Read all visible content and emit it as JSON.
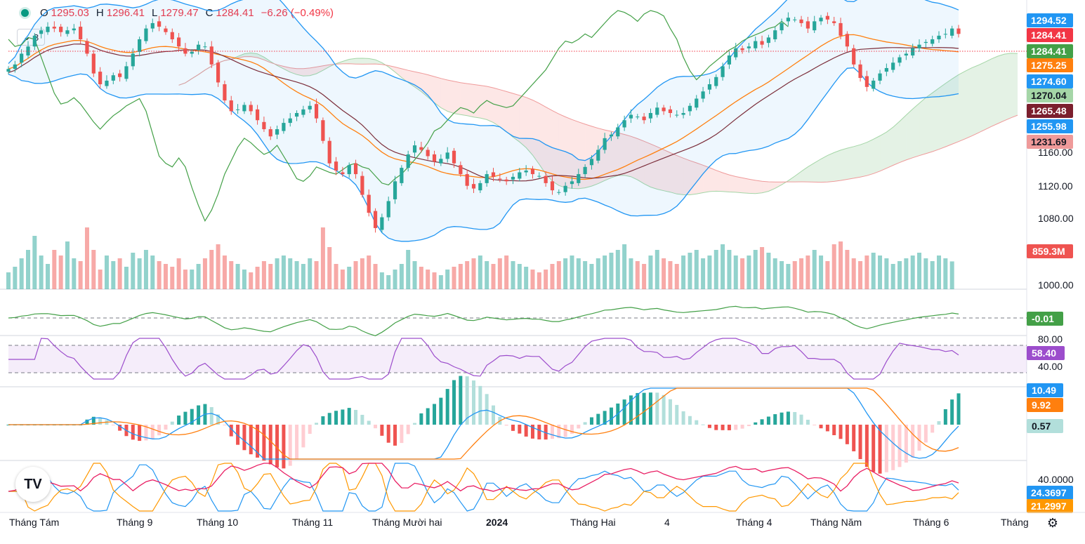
{
  "header": {
    "open_label": "O",
    "open": "1295.03",
    "high_label": "H",
    "high": "1296.41",
    "low_label": "L",
    "low": "1279.47",
    "close_label": "C",
    "close": "1284.41",
    "change": "−6.26 (−0.49%)"
  },
  "collapse_button": {
    "label": "8"
  },
  "logo_text": "TV",
  "colors": {
    "up": "#26a69a",
    "down": "#ef5350",
    "bb": "#2196f3",
    "ma": "#ff7f0e",
    "kijun": "#7b2d3a",
    "chikou": "#43a047",
    "rsi": "#9c4dcc",
    "dmi_plus": "#2196f3",
    "dmi_minus": "#ff9800",
    "adx": "#e91e63"
  },
  "chart_data": [
    {
      "type": "candlestick",
      "panel": "price",
      "y_ticks": [
        "1160.00",
        "1120.00",
        "1080.00",
        "1000.00"
      ],
      "ylim": [
        1000,
        1310
      ],
      "x_ticks": [
        "Tháng Tám",
        "Tháng 9",
        "Tháng 10",
        "Tháng 11",
        "Tháng Mười hai",
        "2024",
        "Tháng Hai",
        "4",
        "Tháng 4",
        "Tháng Năm",
        "Tháng 6",
        "Tháng"
      ],
      "price_tags": [
        {
          "value": "1294.52",
          "color": "#2196f3"
        },
        {
          "value": "1284.41",
          "color": "#f23645"
        },
        {
          "value": "1284.41",
          "color": "#43a047"
        },
        {
          "value": "1275.25",
          "color": "#ff7f0e"
        },
        {
          "value": "1274.60",
          "color": "#2196f3"
        },
        {
          "value": "1270.04",
          "color": "#a5d6a7"
        },
        {
          "value": "1265.48",
          "color": "#7b1f2d"
        },
        {
          "value": "1255.98",
          "color": "#2196f3"
        },
        {
          "value": "1231.69",
          "color": "#ef9a9a"
        }
      ],
      "volume_tag": "859.3M",
      "close_series": [
        1245,
        1250,
        1262,
        1270,
        1282,
        1288,
        1292,
        1290,
        1286,
        1288,
        1290,
        1278,
        1262,
        1240,
        1228,
        1232,
        1238,
        1236,
        1248,
        1262,
        1278,
        1290,
        1296,
        1292,
        1286,
        1278,
        1270,
        1262,
        1264,
        1272,
        1270,
        1250,
        1230,
        1210,
        1198,
        1200,
        1205,
        1198,
        1188,
        1178,
        1170,
        1178,
        1185,
        1190,
        1196,
        1200,
        1204,
        1190,
        1165,
        1140,
        1132,
        1128,
        1138,
        1128,
        1105,
        1085,
        1068,
        1080,
        1098,
        1120,
        1135,
        1150,
        1160,
        1155,
        1148,
        1142,
        1145,
        1152,
        1140,
        1128,
        1115,
        1112,
        1118,
        1128,
        1125,
        1122,
        1120,
        1125,
        1130,
        1132,
        1128,
        1126,
        1118,
        1110,
        1108,
        1115,
        1120,
        1128,
        1136,
        1145,
        1155,
        1168,
        1172,
        1180,
        1188,
        1194,
        1192,
        1188,
        1196,
        1202,
        1198,
        1196,
        1194,
        1196,
        1204,
        1212,
        1220,
        1228,
        1236,
        1248,
        1260,
        1268,
        1266,
        1270,
        1276,
        1272,
        1280,
        1288,
        1296,
        1302,
        1300,
        1296,
        1290,
        1298,
        1302,
        1300,
        1296,
        1282,
        1270,
        1250,
        1235,
        1225,
        1232,
        1240,
        1246,
        1252,
        1258,
        1262,
        1268,
        1272,
        1275,
        1278,
        1282,
        1284,
        1290,
        1284
      ],
      "volume_series": [
        820,
        840,
        870,
        900,
        950,
        880,
        850,
        900,
        880,
        930,
        870,
        860,
        980,
        900,
        830,
        880,
        860,
        870,
        840,
        890,
        870,
        900,
        880,
        860,
        850,
        840,
        870,
        830,
        830,
        850,
        870,
        900,
        920,
        880,
        860,
        850,
        830,
        820,
        840,
        860,
        850,
        870,
        880,
        870,
        860,
        850,
        870,
        860,
        980,
        910,
        850,
        830,
        840,
        860,
        870,
        880,
        850,
        820,
        810,
        830,
        850,
        900,
        860,
        840,
        830,
        820,
        810,
        830,
        840,
        850,
        860,
        870,
        880,
        860,
        850,
        870,
        880,
        860,
        850,
        840,
        830,
        820,
        830,
        850,
        860,
        870,
        880,
        870,
        860,
        850,
        870,
        880,
        890,
        900,
        920,
        870,
        860,
        850,
        880,
        900,
        870,
        860,
        850,
        880,
        890,
        900,
        870,
        880,
        900,
        920,
        900,
        880,
        870,
        880,
        900,
        910,
        890,
        870,
        860,
        850,
        860,
        870,
        880,
        900,
        880,
        860,
        920,
        930,
        900,
        870,
        860,
        880,
        890,
        880,
        870,
        850,
        860,
        870,
        880,
        890,
        870,
        860,
        880,
        870,
        859
      ]
    },
    {
      "type": "line",
      "panel": "oscillator",
      "value_tag": "-0.01",
      "tag_color": "#43a047"
    },
    {
      "type": "line",
      "panel": "rsi",
      "y_ticks": [
        "80.00",
        "40.00"
      ],
      "value_tag": "58.40",
      "tag_color": "#9c4dcc"
    },
    {
      "type": "histogram",
      "panel": "macd",
      "tags": [
        {
          "value": "10.49",
          "color": "#2196f3"
        },
        {
          "value": "9.92",
          "color": "#ff7f0e"
        },
        {
          "value": "0.57",
          "color": "#b2dfdb"
        }
      ]
    },
    {
      "type": "line",
      "panel": "dmi",
      "y_ticks": [
        "40.0000"
      ],
      "tags": [
        {
          "value": "24.3697",
          "color": "#2196f3"
        },
        {
          "value": "21.2997",
          "color": "#ff9800"
        }
      ]
    }
  ]
}
